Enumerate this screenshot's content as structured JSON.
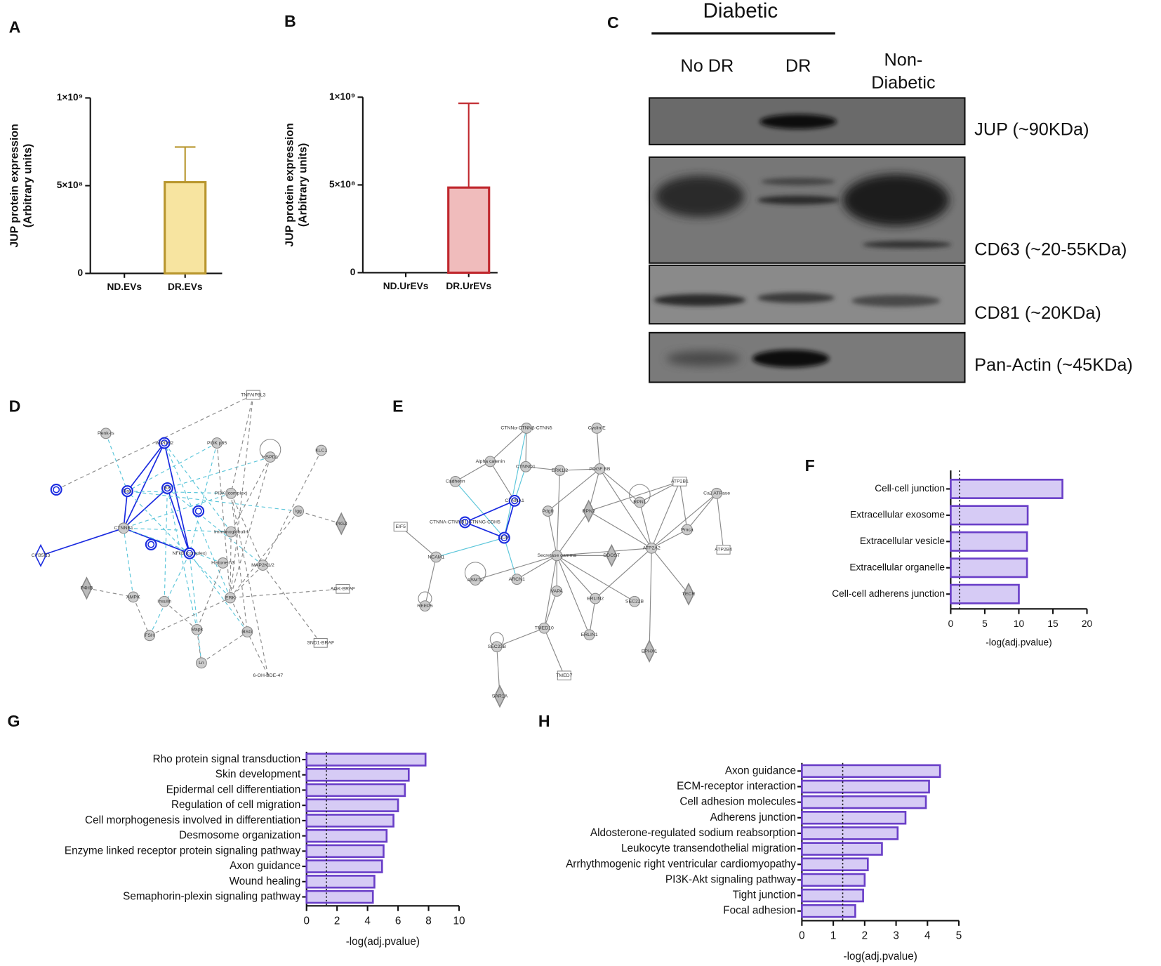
{
  "panel_labels": [
    "A",
    "B",
    "C",
    "D",
    "E",
    "F",
    "G",
    "H"
  ],
  "chart_data": [
    {
      "type": "bar",
      "orientation": "vertical",
      "categories": [
        "ND.EVs",
        "DR.EVs"
      ],
      "values": [
        0,
        520000000
      ],
      "errors": [
        null,
        200000000
      ],
      "ylabel": [
        "JUP protein expression",
        "(Arbitrary units)"
      ],
      "ylim": [
        0,
        1000000000
      ],
      "yticks": [
        0,
        {
          "value": 500000000,
          "label": "5×10⁸"
        },
        {
          "value": 1000000000,
          "label": "1×10⁹"
        }
      ],
      "fill": "#f7e4a0",
      "color": "#b8962e"
    },
    {
      "type": "bar",
      "orientation": "vertical",
      "categories": [
        "ND.UrEVs",
        "DR.UrEVs"
      ],
      "values": [
        0,
        485000000
      ],
      "errors": [
        null,
        480000000
      ],
      "ylabel": [
        "JUP protein expression",
        "(Arbitrary units)"
      ],
      "ylim": [
        0,
        1000000000
      ],
      "yticks": [
        0,
        {
          "value": 500000000,
          "label": "5×10⁸"
        },
        {
          "value": 1000000000,
          "label": "1×10⁹"
        }
      ],
      "fill": "#f0bcbc",
      "color": "#c0282e"
    },
    {
      "type": "bar",
      "orientation": "horizontal",
      "categories": [
        "Cell-cell junction",
        "Extracellular exosome",
        "Extracellular vesicle",
        "Extracellular organelle",
        "Cell-cell adherens junction"
      ],
      "values": [
        16.4,
        11.3,
        11.2,
        11.2,
        10.0
      ],
      "xlabel": "-log(adj.pvalue)",
      "xlim": [
        0,
        20
      ],
      "xticks": [
        0,
        5,
        10,
        15,
        20
      ],
      "threshold": 1.3,
      "fill": "#d6cbf5",
      "color": "#6a3fc8"
    },
    {
      "type": "bar",
      "orientation": "horizontal",
      "categories": [
        "Rho protein signal transduction",
        "Skin development",
        "Epidermal cell differentiation",
        "Regulation of cell migration",
        "Cell morphogenesis involved in differentiation",
        "Desmosome organization",
        "Enzyme linked receptor protein signaling pathway",
        "Axon guidance",
        "Wound healing",
        "Semaphorin-plexin signaling pathway"
      ],
      "values": [
        7.8,
        6.7,
        6.45,
        6.0,
        5.7,
        5.25,
        5.05,
        4.95,
        4.45,
        4.35
      ],
      "xlabel": "-log(adj.pvalue)",
      "xlim": [
        0,
        10
      ],
      "xticks": [
        0,
        2,
        4,
        6,
        8,
        10
      ],
      "threshold": 1.3,
      "fill": "#d6cbf5",
      "color": "#6a3fc8"
    },
    {
      "type": "bar",
      "orientation": "horizontal",
      "categories": [
        "Axon guidance",
        "ECM-receptor interaction",
        "Cell adhesion molecules",
        "Adherens junction",
        "Aldosterone-regulated sodium reabsorption",
        "Leukocyte transendothelial migration",
        "Arrhythmogenic right ventricular cardiomyopathy",
        "PI3K-Akt signaling pathway",
        "Tight junction",
        "Focal adhesion"
      ],
      "values": [
        4.4,
        4.05,
        3.95,
        3.3,
        3.05,
        2.55,
        2.1,
        2.0,
        1.95,
        1.7
      ],
      "xlabel": "-log(adj.pvalue)",
      "xlim": [
        0,
        5
      ],
      "xticks": [
        0,
        1,
        2,
        3,
        4,
        5
      ],
      "threshold": 1.3,
      "fill": "#d6cbf5",
      "color": "#6a3fc8"
    }
  ],
  "blot": {
    "group": "Diabetic",
    "lanes": [
      "No DR",
      "DR",
      [
        "Non-",
        "Diabetic"
      ]
    ],
    "bands": [
      "JUP (~90KDa)",
      "CD63 (~20-55KDa)",
      "CD81 (~20KDa)",
      "Pan-Actin (~45KDa)"
    ]
  },
  "networks": [
    {
      "nodes": [
        "TNFAIP8L3",
        "Penk-rs",
        "IMPDH2",
        "PI3K p85",
        "HSPD1",
        "KLC1",
        "Ras",
        "IKK",
        "PI3K (complex)",
        "Igg",
        "CTNNB1",
        "PIGZ",
        "CYB5R3",
        "NFkB (complex)",
        "Immunoglobulin",
        "Histone h3",
        "MAP2K1/2",
        "AGK-BRAF",
        "P4HB",
        "AMPK",
        "Insulin",
        "ERK",
        "FSH",
        "Mapk",
        "BSG",
        "SND1-BRAF",
        "Ln",
        "6-OH-BDE-47"
      ]
    },
    {
      "nodes": [
        "CTNNα-CTNNβ-CTNNδ",
        "Cyclin E",
        "Alpha catenin",
        "CTNND1",
        "ERK1/2",
        "PDGF BB",
        "Cadherin",
        "CTNNA1",
        "Pdgfr",
        "ATP2B1",
        "Ca2 ATPase",
        "RPN2",
        "RPN1",
        "EIF5",
        "CTNNA-CTNNB1-CTNNG-CDH5",
        "JUP",
        "Secretase gamma",
        "Pmca",
        "ATP2A2",
        "ATP2B4",
        "NCAM1",
        "ASMTL",
        "ARCN1",
        "DDOST",
        "REEP5",
        "VAPA",
        "ERLIN2",
        "SEC22B",
        "TECR",
        "TMED10",
        "ERLIN1",
        "SEC23B",
        "EPHX1",
        "TMED7",
        "SAR1A"
      ]
    }
  ]
}
